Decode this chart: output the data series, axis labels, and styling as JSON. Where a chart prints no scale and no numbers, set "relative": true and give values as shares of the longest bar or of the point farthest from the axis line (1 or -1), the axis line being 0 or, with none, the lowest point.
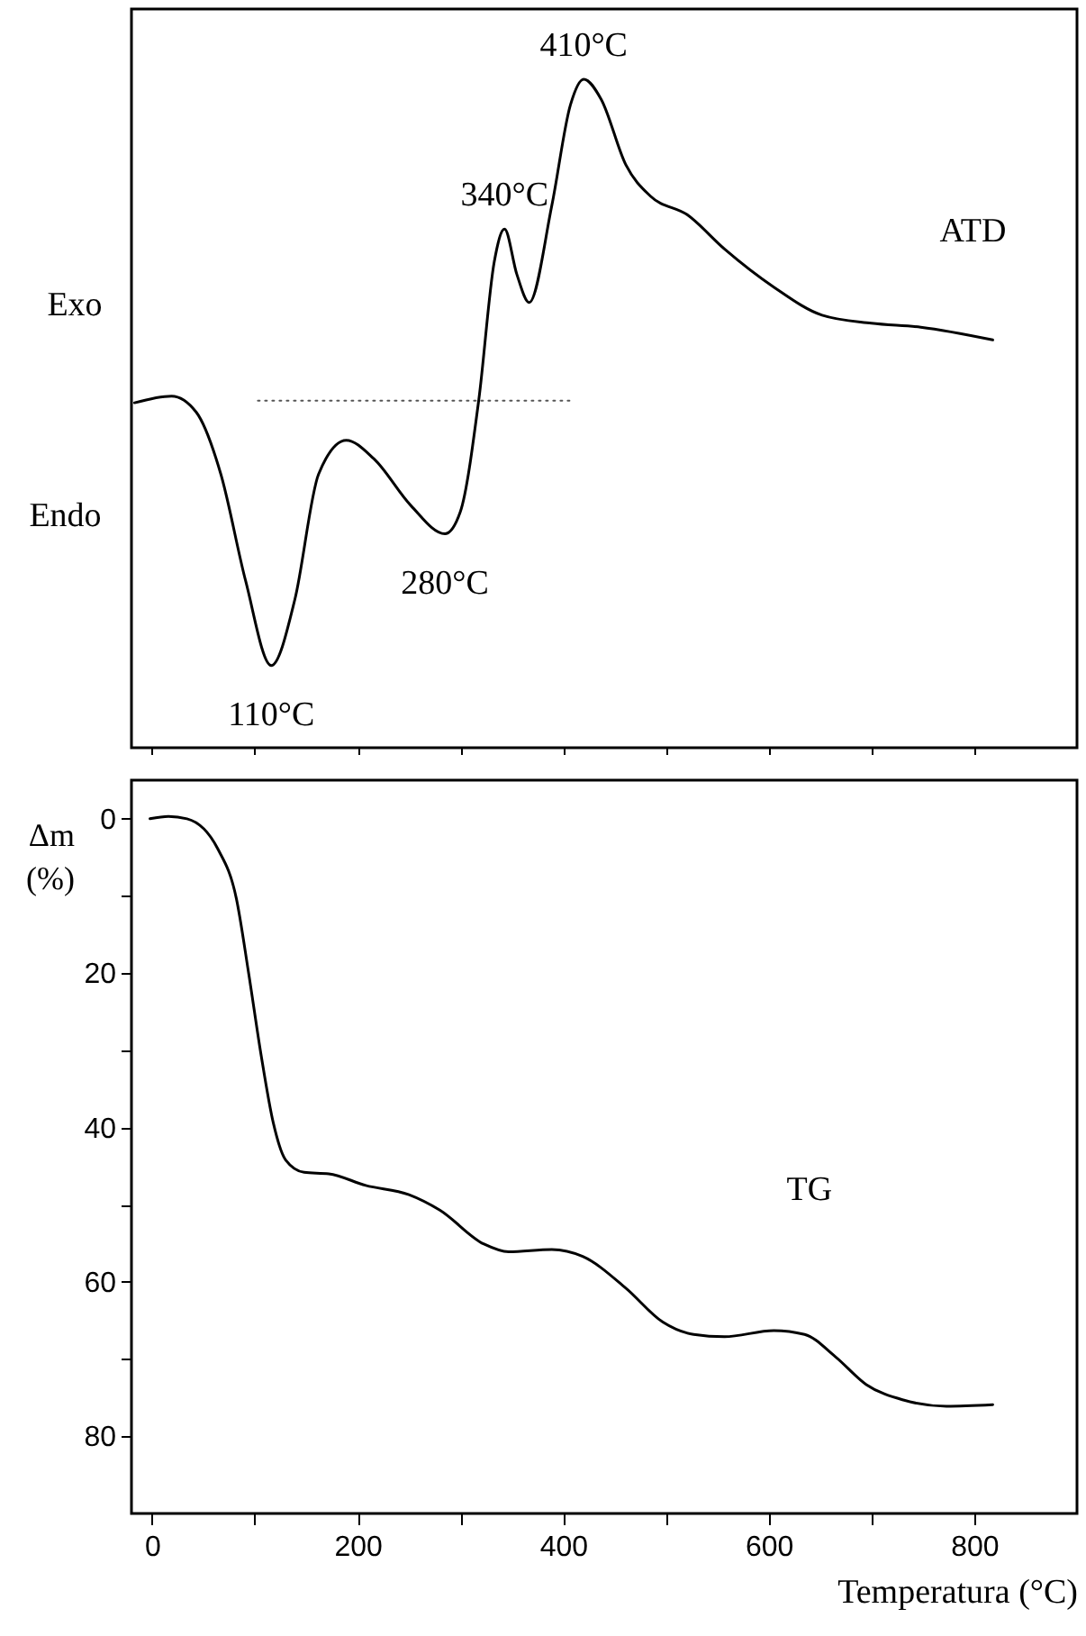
{
  "chart_data": [
    {
      "type": "line",
      "relative": true,
      "tick_labels": false,
      "xlim": [
        -20,
        900
      ],
      "xticks": [
        0,
        100,
        200,
        300,
        400,
        500,
        600,
        700,
        800
      ],
      "series": [
        {
          "color": "#000000",
          "x": [
            -17,
            19,
            43,
            67,
            91,
            116,
            139,
            162,
            189,
            216,
            252,
            285,
            300,
            318,
            333,
            343,
            355,
            367,
            389,
            407,
            420,
            437,
            461,
            485,
            521,
            557,
            605,
            652,
            700,
            748,
            818
          ],
          "values": [
            0.516,
            0.526,
            0.502,
            0.409,
            0.25,
            0.123,
            0.222,
            0.409,
            0.46,
            0.432,
            0.362,
            0.32,
            0.353,
            0.521,
            0.727,
            0.776,
            0.708,
            0.666,
            0.811,
            0.961,
            1,
            0.97,
            0.872,
            0.825,
            0.797,
            0.746,
            0.689,
            0.647,
            0.635,
            0.629,
            0.61
          ]
        },
        {
          "color": "#555555",
          "line_style": "dotted",
          "x": [
            103,
            410
          ],
          "values": [
            0.519,
            0.519
          ]
        }
      ],
      "annotations": [
        "ATD",
        "Exo",
        "Endo",
        {
          "text": "110°C",
          "x": 116,
          "y": 0.123
        },
        {
          "text": "280°C",
          "x": 285,
          "y": 0.32
        },
        {
          "text": "340°C",
          "x": 343,
          "y": 0.776
        },
        {
          "text": "410°C",
          "x": 420,
          "y": 1
        }
      ]
    },
    {
      "type": "line",
      "xlim": [
        -20,
        900
      ],
      "xticks": [
        0,
        {
          "value": 100,
          "label": null
        },
        200,
        {
          "value": 300,
          "label": null
        },
        400,
        {
          "value": 500,
          "label": null
        },
        600,
        {
          "value": 700,
          "label": null
        },
        800
      ],
      "ylim": [
        90,
        -5
      ],
      "yticks": [
        0,
        {
          "value": 10,
          "label": null
        },
        20,
        {
          "value": 30,
          "label": null
        },
        40,
        {
          "value": 50,
          "label": null
        },
        60,
        {
          "value": 70,
          "label": null
        },
        80
      ],
      "xlabel": "Temperatura (°C)",
      "ylabel": "Δm (%)",
      "x": [
        -2,
        16,
        34,
        64,
        82,
        94,
        106,
        118,
        130,
        148,
        172,
        208,
        250,
        280,
        323,
        347,
        389,
        419,
        461,
        497,
        527,
        557,
        605,
        635,
        665,
        695,
        731,
        773,
        818
      ],
      "series": [
        {
          "color": "#000000",
          "values": [
            0,
            -0.3,
            0,
            3.9,
            10.3,
            20,
            30.5,
            39.4,
            44.2,
            45.8,
            46,
            47.5,
            48.7,
            50.7,
            55.1,
            56.1,
            55.8,
            56.7,
            60.8,
            65.2,
            66.8,
            67.1,
            66.3,
            66.8,
            69.7,
            73.3,
            75.3,
            76.1,
            75.9
          ]
        }
      ],
      "annotations": [
        "TG"
      ]
    }
  ]
}
